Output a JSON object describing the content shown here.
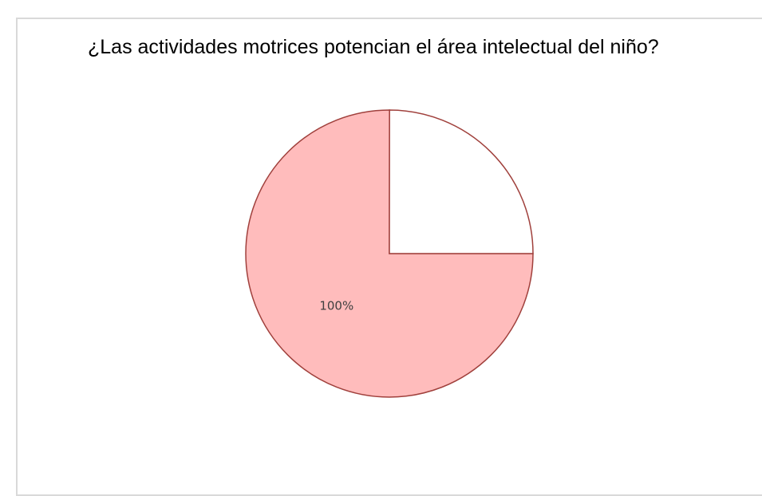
{
  "chart_data": {
    "type": "pie",
    "title": "¿Las actividades motrices potencian el área intelectual del niño?",
    "values": [
      100,
      33.3
    ],
    "value_labels": [
      "100%",
      null
    ],
    "colors": [
      "#ffbcbc",
      "#ffffff"
    ],
    "edge_color": "#a0403c"
  }
}
